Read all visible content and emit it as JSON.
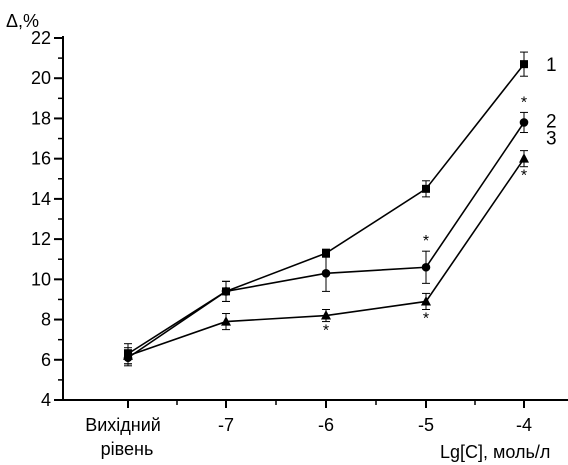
{
  "chart_data": {
    "type": "line",
    "ylabel": "Δ,%",
    "xlabel": "Lg[C], моль/л",
    "categories": [
      "Вихідний рівень",
      "-7",
      "-6",
      "-5",
      "-4"
    ],
    "ylim": [
      4,
      22
    ],
    "yticks": [
      "4",
      "6",
      "8",
      "10",
      "12",
      "14",
      "16",
      "18",
      "20",
      "22"
    ],
    "grid": false,
    "series": [
      {
        "name": "1",
        "marker": "square",
        "values": [
          6.3,
          9.4,
          11.3,
          14.5,
          20.7
        ],
        "errors": [
          0.5,
          0.5,
          0.2,
          0.4,
          0.6
        ],
        "significance": [
          "",
          "",
          "",
          "",
          ""
        ]
      },
      {
        "name": "2",
        "marker": "circle",
        "values": [
          6.1,
          9.4,
          10.3,
          10.6,
          17.8
        ],
        "errors": [
          0.4,
          0.5,
          0.9,
          0.8,
          0.5
        ],
        "significance": [
          "",
          "",
          "",
          "*",
          "*"
        ]
      },
      {
        "name": "3",
        "marker": "triangle",
        "values": [
          6.2,
          7.9,
          8.2,
          8.9,
          16.0
        ],
        "errors": [
          0.4,
          0.4,
          0.3,
          0.4,
          0.4
        ],
        "significance": [
          "",
          "",
          "*",
          "*",
          "*"
        ]
      }
    ],
    "colors": {
      "line": "#000000",
      "background": "#ffffff"
    }
  }
}
